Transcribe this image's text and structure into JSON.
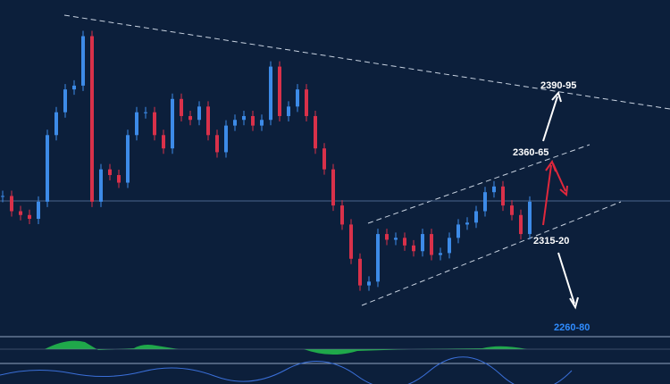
{
  "chart_data": {
    "type": "candlestick",
    "values": [
      2338,
      2330,
      2328,
      2326,
      2335,
      2370,
      2382,
      2394,
      2396,
      2422,
      2335,
      2352,
      2349,
      2345,
      2370,
      2382,
      2382,
      2370,
      2363,
      2389,
      2380,
      2378,
      2385,
      2370,
      2361,
      2375,
      2378,
      2380,
      2375,
      2378,
      2406,
      2380,
      2385,
      2394,
      2380,
      2363,
      2352,
      2333,
      2323,
      2305,
      2291,
      2293,
      2318,
      2315,
      2316,
      2312,
      2309,
      2318,
      2307,
      2308,
      2316,
      2323,
      2324,
      2330,
      2340,
      2343,
      2333,
      2328,
      2318,
      2335
    ],
    "ylim": [
      2265,
      2441
    ],
    "up_color": "#3d8be8",
    "down_color": "#d9314a",
    "annotations": [
      "2390-95",
      "2360-65",
      "2315-20",
      "2260-80"
    ]
  }
}
